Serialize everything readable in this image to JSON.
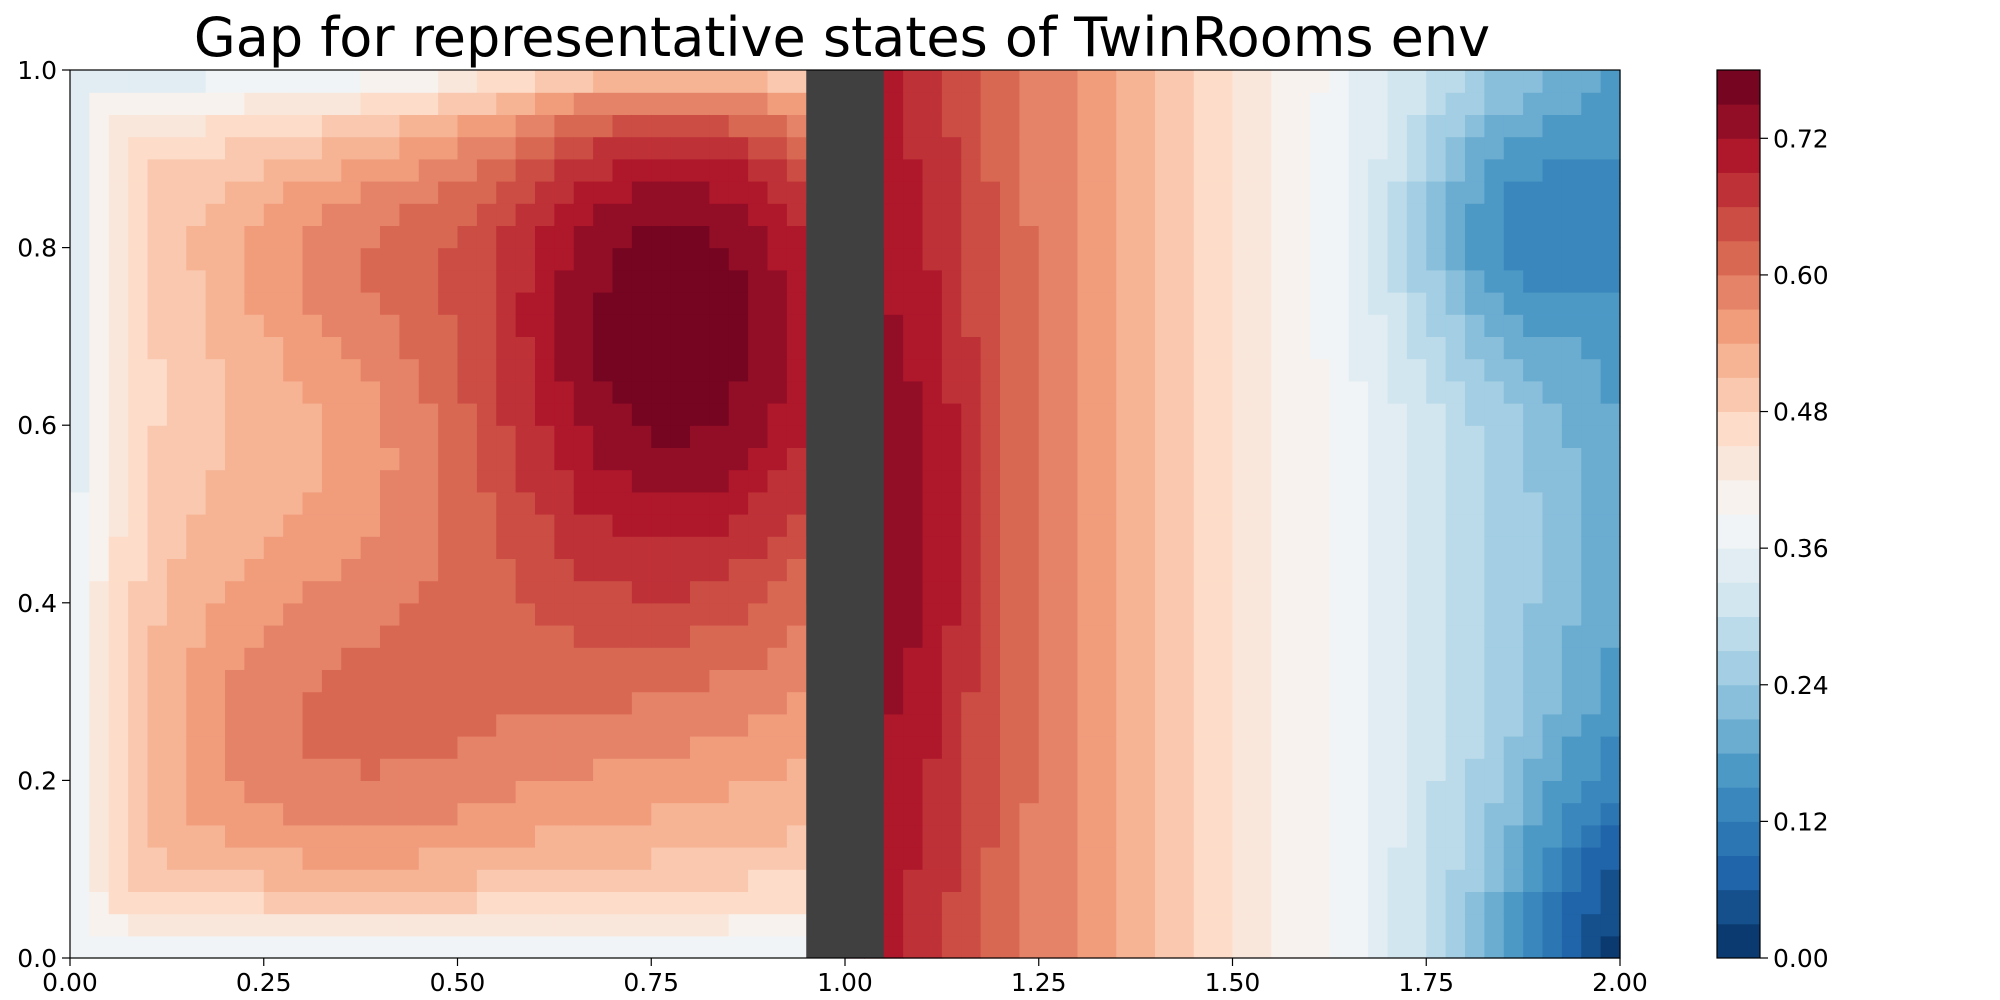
{
  "chart_data": {
    "type": "heatmap",
    "title": "Gap for representative states of TwinRooms env",
    "xlabel": "",
    "ylabel": "",
    "xlim": [
      0,
      2
    ],
    "ylim": [
      0,
      1
    ],
    "x_ticks": [
      "0.00",
      "0.25",
      "0.50",
      "0.75",
      "1.00",
      "1.25",
      "1.50",
      "1.75",
      "2.00"
    ],
    "y_ticks": [
      "0.0",
      "0.2",
      "0.4",
      "0.6",
      "0.8",
      "1.0"
    ],
    "colorbar": {
      "range": [
        0,
        0.78
      ],
      "ticks": [
        "0.00",
        "0.12",
        "0.24",
        "0.36",
        "0.48",
        "0.60",
        "0.72"
      ],
      "levels": 26,
      "colormap": "RdBu_r"
    },
    "wall": {
      "x_range": [
        0.95,
        1.05
      ],
      "color": "#404040"
    },
    "hotspots": [
      {
        "x": 0.8,
        "y": 0.78,
        "value": 0.78
      },
      {
        "x": 0.3,
        "y": 0.14,
        "value": 0.66
      },
      {
        "x": 1.85,
        "y": 0.82,
        "value": 0.15
      },
      {
        "x": 1.98,
        "y": 0.04,
        "value": 0.01
      }
    ],
    "grid": false
  }
}
